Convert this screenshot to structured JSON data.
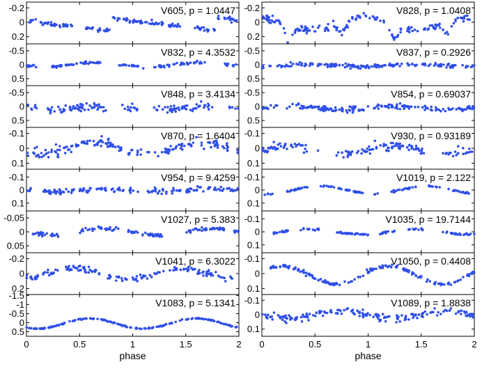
{
  "figure": {
    "xlabel": "phase",
    "xlim": [
      0,
      2
    ],
    "xticks": [
      0,
      0.5,
      1,
      1.5,
      2
    ],
    "xtick_labels": [
      "0",
      "0.5",
      "1",
      "1.5",
      "2"
    ],
    "marker_color": "#2f4fe8"
  },
  "chart_data": [
    {
      "type": "scatter",
      "column": "left",
      "row": 0,
      "star": "V605",
      "title": "V605, p = 1.0447",
      "ylim": [
        0.3,
        -0.28
      ],
      "yticks": [
        -0.2,
        0,
        0.2
      ],
      "ytick_labels": [
        "-0.2",
        "0",
        "0.2"
      ],
      "curve": {
        "shape": "sawtooth",
        "amp": 0.09,
        "center": 0.03,
        "phase": 0.2,
        "noise": 0.03,
        "gaps": [
          [
            0.45,
            0.55
          ],
          [
            1.45,
            1.55
          ]
        ]
      }
    },
    {
      "type": "scatter",
      "column": "right",
      "row": 0,
      "star": "V828",
      "title": "V828, p = 1.0408",
      "ylim": [
        0.3,
        -0.28
      ],
      "yticks": [
        -0.2,
        0,
        0.2
      ],
      "ytick_labels": [
        "-0.2",
        "0",
        "0.2"
      ],
      "curve": {
        "shape": "eclipse",
        "amp": 0.18,
        "center": 0.02,
        "phase": 0.05,
        "noise": 0.05,
        "gaps": []
      }
    },
    {
      "type": "scatter",
      "column": "left",
      "row": 1,
      "star": "V832",
      "title": "V832, p = 4.3532",
      "ylim": [
        0.75,
        -0.75
      ],
      "yticks": [
        -0.5,
        0,
        0.5
      ],
      "ytick_labels": [
        "-0.5",
        "0",
        "0.5"
      ],
      "curve": {
        "shape": "sine",
        "amp": 0.07,
        "center": 0.0,
        "phase": 0.1,
        "noise": 0.05,
        "gaps": [
          [
            0.1,
            0.2
          ],
          [
            0.7,
            0.85
          ],
          [
            1.1,
            1.2
          ],
          [
            1.7,
            1.85
          ]
        ]
      }
    },
    {
      "type": "scatter",
      "column": "right",
      "row": 1,
      "star": "V837",
      "title": "V837, p = 0.2926",
      "ylim": [
        0.75,
        -0.75
      ],
      "yticks": [
        -0.5,
        0,
        0.5
      ],
      "ytick_labels": [
        "-0.5",
        "0",
        "0.5"
      ],
      "curve": {
        "shape": "sine",
        "amp": 0.04,
        "center": 0.03,
        "phase": 0.3,
        "noise": 0.07,
        "gaps": []
      }
    },
    {
      "type": "scatter",
      "column": "left",
      "row": 2,
      "star": "V848",
      "title": "V848, p = 3.4134",
      "ylim": [
        0.75,
        -0.75
      ],
      "yticks": [
        -0.5,
        0,
        0.5
      ],
      "ytick_labels": [
        "-0.5",
        "0",
        "0.5"
      ],
      "curve": {
        "shape": "sine",
        "amp": 0.05,
        "center": 0.05,
        "phase": 0.0,
        "noise": 0.13,
        "gaps": [
          [
            0.1,
            0.2
          ],
          [
            0.75,
            0.9
          ],
          [
            1.1,
            1.2
          ],
          [
            1.75,
            1.9
          ]
        ]
      }
    },
    {
      "type": "scatter",
      "column": "right",
      "row": 2,
      "star": "V854",
      "title": "V854, p = 0.69037",
      "ylim": [
        0.75,
        -0.75
      ],
      "yticks": [
        -0.5,
        0,
        0.5
      ],
      "ytick_labels": [
        "-0.5",
        "0",
        "0.5"
      ],
      "curve": {
        "shape": "sine",
        "amp": 0.06,
        "center": 0.05,
        "phase": 0.5,
        "noise": 0.09,
        "gaps": []
      }
    },
    {
      "type": "scatter",
      "column": "left",
      "row": 3,
      "star": "V870",
      "title": "V870, p = 1.6404",
      "ylim": [
        0.14,
        -0.14
      ],
      "yticks": [
        -0.1,
        0,
        0.1
      ],
      "ytick_labels": [
        "-0.1",
        "0",
        "0.1"
      ],
      "curve": {
        "shape": "sine",
        "amp": 0.04,
        "center": 0.0,
        "phase": 0.1,
        "noise": 0.03,
        "gaps": [
          [
            0.9,
            0.95
          ],
          [
            1.9,
            1.95
          ]
        ]
      }
    },
    {
      "type": "scatter",
      "column": "right",
      "row": 3,
      "star": "V930",
      "title": "V930, p = 0.93189",
      "ylim": [
        0.14,
        -0.14
      ],
      "yticks": [
        -0.1,
        0,
        0.1
      ],
      "ytick_labels": [
        "-0.1",
        "0",
        "0.1"
      ],
      "curve": {
        "shape": "sine",
        "amp": 0.03,
        "center": 0.01,
        "phase": 0.5,
        "noise": 0.025,
        "gaps": [
          [
            0.55,
            0.7
          ],
          [
            1.55,
            1.7
          ]
        ]
      }
    },
    {
      "type": "scatter",
      "column": "left",
      "row": 4,
      "star": "V954",
      "title": "V954, p = 9.4259",
      "ylim": [
        0.16,
        -0.16
      ],
      "yticks": [
        -0.1,
        0,
        0.1
      ],
      "ytick_labels": [
        "-0.1",
        "0",
        "0.1"
      ],
      "curve": {
        "shape": "sine",
        "amp": 0.01,
        "center": 0.0,
        "phase": 0.0,
        "noise": 0.02,
        "gaps": [
          [
            0.05,
            0.12
          ],
          [
            0.45,
            0.5
          ],
          [
            1.05,
            1.12
          ],
          [
            1.45,
            1.5
          ]
        ]
      }
    },
    {
      "type": "scatter",
      "column": "right",
      "row": 4,
      "star": "V1019",
      "title": "V1019, p = 2.122",
      "ylim": [
        0.16,
        -0.16
      ],
      "yticks": [
        -0.1,
        0,
        0.1
      ],
      "ytick_labels": [
        "-0.1",
        "0",
        "0.1"
      ],
      "curve": {
        "shape": "sine",
        "amp": 0.03,
        "center": 0.0,
        "phase": 0.2,
        "noise": 0.006,
        "gaps": [
          [
            0.1,
            0.22
          ],
          [
            0.45,
            0.55
          ],
          [
            0.68,
            0.72
          ],
          [
            0.95,
            1.05
          ],
          [
            1.1,
            1.22
          ],
          [
            1.45,
            1.55
          ],
          [
            1.68,
            1.72
          ],
          [
            1.95,
            2.0
          ]
        ]
      }
    },
    {
      "type": "scatter",
      "column": "right",
      "row": 5,
      "star": "V1035",
      "title": "V1035, p = 19.7144",
      "ylim": [
        0.16,
        -0.16
      ],
      "yticks": [
        -0.1,
        0,
        0.1
      ],
      "ytick_labels": [
        "-0.1",
        "0",
        "0.1"
      ],
      "curve": {
        "shape": "sine",
        "amp": 0.02,
        "center": 0.0,
        "phase": 0.3,
        "noise": 0.008,
        "gaps": [
          [
            0.0,
            0.1
          ],
          [
            0.25,
            0.35
          ],
          [
            0.55,
            0.7
          ],
          [
            1.0,
            1.1
          ],
          [
            1.25,
            1.35
          ],
          [
            1.55,
            1.7
          ]
        ]
      }
    },
    {
      "type": "scatter",
      "column": "left",
      "row": 5,
      "star": "V1027",
      "title": "V1027, p = 5.383",
      "ylim": [
        0.075,
        -0.075
      ],
      "yticks": [
        -0.05,
        0,
        0.05
      ],
      "ytick_labels": [
        "-0.05",
        "0",
        "0.05"
      ],
      "curve": {
        "shape": "sine",
        "amp": 0.012,
        "center": 0.0,
        "phase": 0.0,
        "noise": 0.007,
        "gaps": [
          [
            0.0,
            0.05
          ],
          [
            0.3,
            0.5
          ],
          [
            0.9,
            0.95
          ],
          [
            1.3,
            1.5
          ],
          [
            1.9,
            1.95
          ]
        ]
      }
    },
    {
      "type": "scatter",
      "column": "left",
      "row": 6,
      "star": "V1041",
      "title": "V1041, p = 6.3022",
      "ylim": [
        0.28,
        -0.28
      ],
      "yticks": [
        -0.2,
        0,
        0.2
      ],
      "ytick_labels": [
        "-0.2",
        "0",
        "0.2"
      ],
      "curve": {
        "shape": "sine",
        "amp": 0.07,
        "center": 0.0,
        "phase": 0.3,
        "noise": 0.04,
        "gaps": [
          [
            0.3,
            0.35
          ],
          [
            0.95,
            1.0
          ],
          [
            1.3,
            1.35
          ],
          [
            1.95,
            2.0
          ]
        ]
      }
    },
    {
      "type": "scatter",
      "column": "right",
      "row": 6,
      "star": "V1050",
      "title": "V1050, p = 0.4408",
      "ylim": [
        0.14,
        -0.14
      ],
      "yticks": [
        -0.1,
        0,
        0.1
      ],
      "ytick_labels": [
        "-0.1",
        "0",
        "0.1"
      ],
      "curve": {
        "shape": "sine",
        "amp": 0.06,
        "center": 0.01,
        "phase": 0.55,
        "noise": 0.012,
        "gaps": []
      }
    },
    {
      "type": "scatter",
      "column": "left",
      "row": 7,
      "star": "V1083",
      "title": "V1083, p = 5.1341",
      "ylim": [
        0.75,
        -1.55
      ],
      "yticks": [
        -1.5,
        -1,
        -0.5,
        0,
        0.5
      ],
      "ytick_labels": [
        "-1.5",
        "-1",
        "-0.5",
        "0",
        "0.5"
      ],
      "curve": {
        "shape": "sine",
        "amp": 0.28,
        "center": 0.05,
        "phase": 0.15,
        "noise": 0.03,
        "gaps": []
      }
    },
    {
      "type": "scatter",
      "column": "right",
      "row": 7,
      "star": "V1089",
      "title": "V1089, p = 1.8838",
      "ylim": [
        0.15,
        -0.14
      ],
      "yticks": [
        -0.1,
        0,
        0.1
      ],
      "ytick_labels": [
        "-0.1",
        "0",
        "0.1"
      ],
      "curve": {
        "shape": "sine",
        "amp": 0.025,
        "center": 0.0,
        "phase": 0.0,
        "noise": 0.025,
        "gaps": []
      }
    }
  ]
}
